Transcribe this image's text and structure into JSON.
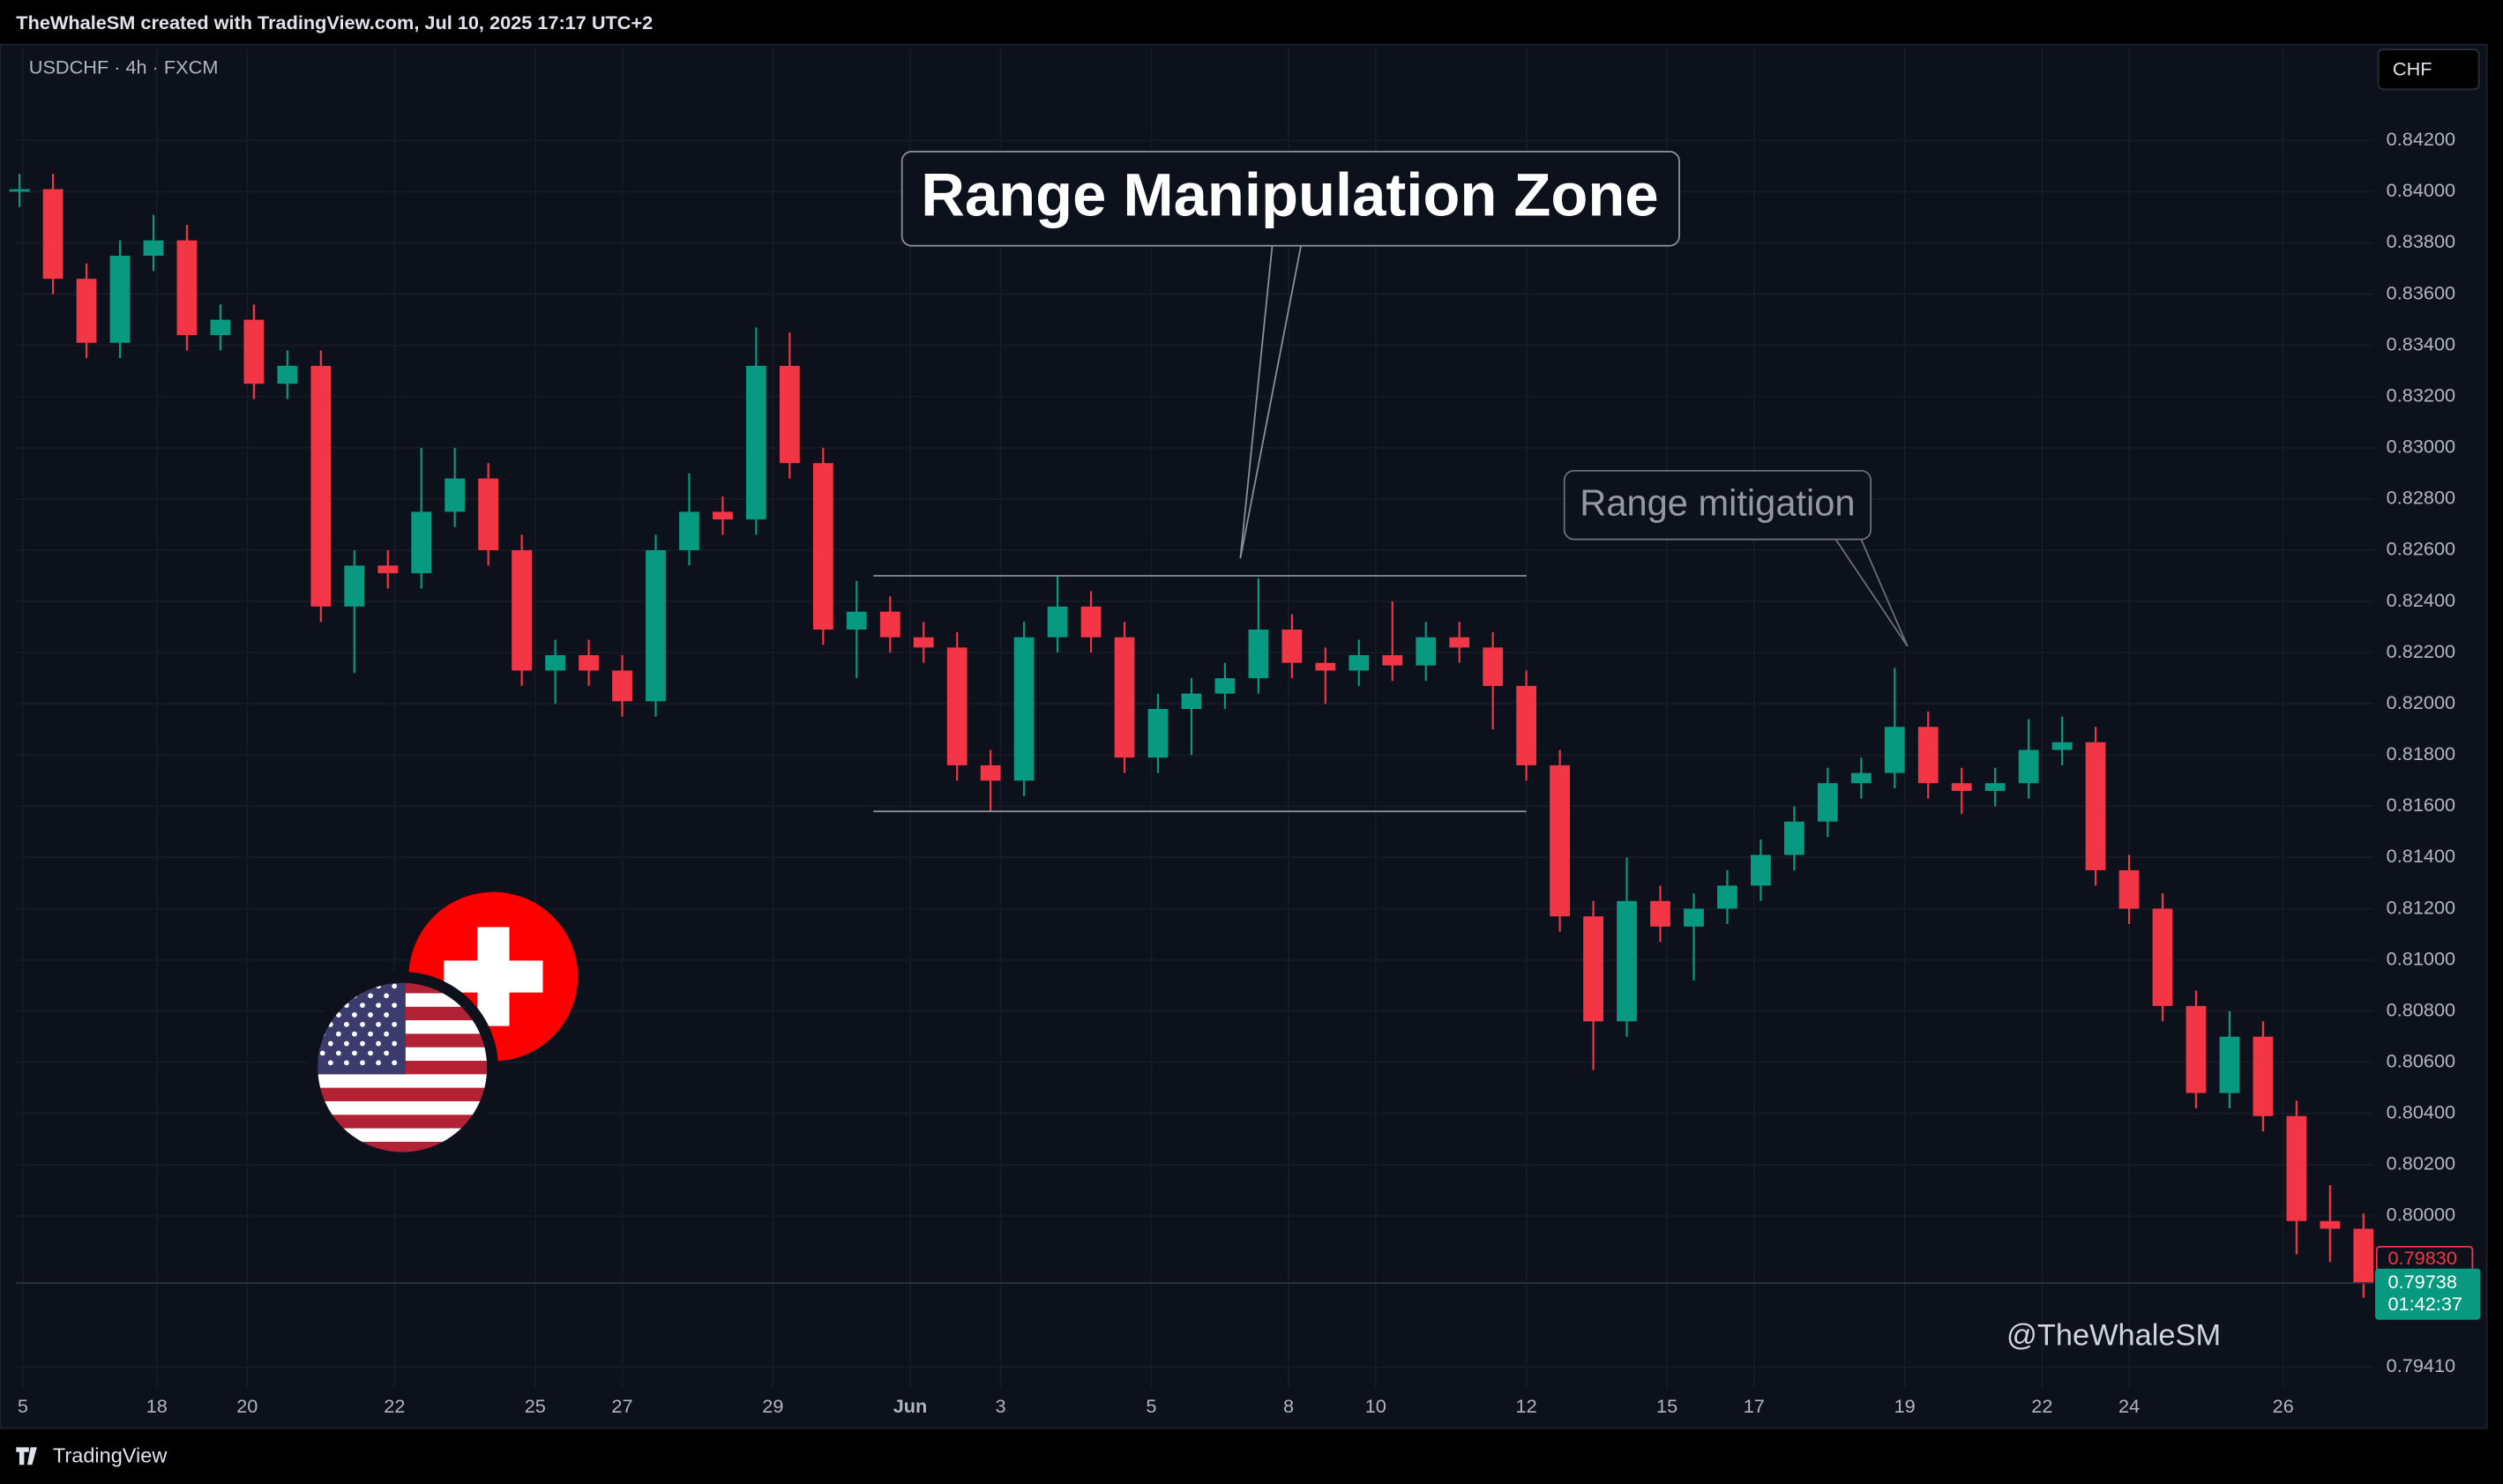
{
  "header_text": "TheWhaleSM created with TradingView.com, Jul 10, 2025 17:17 UTC+2",
  "symbol": "USDCHF · 4h · FXCM",
  "currency": "CHF",
  "watermark": "@TheWhaleSM",
  "footer": "TradingView",
  "chart_data": {
    "type": "candlestick",
    "up_color": "#089981",
    "down_color": "#f23645",
    "grid": true,
    "open": [
      0.84,
      0.8401,
      0.8366,
      0.8341,
      0.8375,
      0.8381,
      0.8344,
      0.835,
      0.8325,
      0.8332,
      0.8238,
      0.8254,
      0.8251,
      0.8275,
      0.8288,
      0.826,
      0.8213,
      0.8219,
      0.8213,
      0.8201,
      0.826,
      0.8275,
      0.8272,
      0.8332,
      0.8294,
      0.8229,
      0.8236,
      0.8226,
      0.8222,
      0.8176,
      0.817,
      0.8226,
      0.8238,
      0.8226,
      0.8179,
      0.8198,
      0.8204,
      0.821,
      0.8229,
      0.8216,
      0.8213,
      0.8219,
      0.8215,
      0.8226,
      0.8222,
      0.8207,
      0.8176,
      0.8117,
      0.8076,
      0.8123,
      0.8113,
      0.812,
      0.8129,
      0.8141,
      0.8154,
      0.8169,
      0.8173,
      0.8191,
      0.8169,
      0.8166,
      0.8169,
      0.8182,
      0.8185,
      0.8135,
      0.812,
      0.8082,
      0.8048,
      0.807,
      0.8039,
      0.7998,
      0.7995
    ],
    "high": [
      0.8407,
      0.8407,
      0.8372,
      0.8381,
      0.8391,
      0.8387,
      0.8356,
      0.8356,
      0.8338,
      0.8338,
      0.826,
      0.826,
      0.83,
      0.83,
      0.8294,
      0.8266,
      0.8225,
      0.8225,
      0.8219,
      0.8266,
      0.829,
      0.8281,
      0.8347,
      0.8345,
      0.83,
      0.8248,
      0.8242,
      0.8232,
      0.8228,
      0.8182,
      0.8232,
      0.825,
      0.8244,
      0.8232,
      0.8204,
      0.821,
      0.8216,
      0.8249,
      0.8235,
      0.8222,
      0.8225,
      0.824,
      0.8232,
      0.8232,
      0.8228,
      0.8213,
      0.8182,
      0.8123,
      0.814,
      0.8129,
      0.8126,
      0.8135,
      0.8147,
      0.816,
      0.8175,
      0.8179,
      0.8214,
      0.8197,
      0.8175,
      0.8175,
      0.8194,
      0.8195,
      0.8191,
      0.8141,
      0.8126,
      0.8088,
      0.808,
      0.8076,
      0.8045,
      0.8012,
      0.8001
    ],
    "low": [
      0.8394,
      0.836,
      0.8335,
      0.8335,
      0.8369,
      0.8338,
      0.8338,
      0.8319,
      0.8319,
      0.8232,
      0.8212,
      0.8245,
      0.8245,
      0.8269,
      0.8254,
      0.8207,
      0.82,
      0.8207,
      0.8195,
      0.8195,
      0.8254,
      0.8266,
      0.8266,
      0.8288,
      0.8223,
      0.821,
      0.822,
      0.8216,
      0.817,
      0.8158,
      0.8164,
      0.822,
      0.822,
      0.8173,
      0.8173,
      0.818,
      0.8198,
      0.8204,
      0.821,
      0.82,
      0.8207,
      0.8209,
      0.8209,
      0.8216,
      0.819,
      0.817,
      0.8111,
      0.8057,
      0.807,
      0.8107,
      0.8092,
      0.8114,
      0.8123,
      0.8135,
      0.8148,
      0.8163,
      0.8167,
      0.8163,
      0.8157,
      0.816,
      0.8163,
      0.8176,
      0.8129,
      0.8114,
      0.8076,
      0.8042,
      0.8042,
      0.8033,
      0.7985,
      0.7982,
      0.7968
    ],
    "close": [
      0.8401,
      0.8366,
      0.8341,
      0.8375,
      0.8381,
      0.8344,
      0.835,
      0.8325,
      0.8332,
      0.8238,
      0.8254,
      0.8251,
      0.8275,
      0.8288,
      0.826,
      0.8213,
      0.8219,
      0.8213,
      0.8201,
      0.826,
      0.8275,
      0.8272,
      0.8332,
      0.8294,
      0.8229,
      0.8236,
      0.8226,
      0.8222,
      0.8176,
      0.817,
      0.8226,
      0.8238,
      0.8226,
      0.8179,
      0.8198,
      0.8204,
      0.821,
      0.8229,
      0.8216,
      0.8213,
      0.8219,
      0.8215,
      0.8226,
      0.8222,
      0.8207,
      0.8176,
      0.8117,
      0.8076,
      0.8123,
      0.8113,
      0.812,
      0.8129,
      0.8141,
      0.8154,
      0.8169,
      0.8173,
      0.8191,
      0.8169,
      0.8166,
      0.8169,
      0.8182,
      0.8185,
      0.8135,
      0.812,
      0.8082,
      0.8048,
      0.807,
      0.8039,
      0.7998,
      0.7995,
      0.79738
    ],
    "ylim": [
      0.79327,
      0.84406
    ],
    "yticks": [
      {
        "value": 0.842,
        "label": "0.84200"
      },
      {
        "value": 0.84,
        "label": "0.84000"
      },
      {
        "value": 0.838,
        "label": "0.83800"
      },
      {
        "value": 0.836,
        "label": "0.83600"
      },
      {
        "value": 0.834,
        "label": "0.83400"
      },
      {
        "value": 0.832,
        "label": "0.83200"
      },
      {
        "value": 0.83,
        "label": "0.83000"
      },
      {
        "value": 0.828,
        "label": "0.82800"
      },
      {
        "value": 0.826,
        "label": "0.82600"
      },
      {
        "value": 0.824,
        "label": "0.82400"
      },
      {
        "value": 0.822,
        "label": "0.82200"
      },
      {
        "value": 0.82,
        "label": "0.82000"
      },
      {
        "value": 0.818,
        "label": "0.81800"
      },
      {
        "value": 0.816,
        "label": "0.81600"
      },
      {
        "value": 0.814,
        "label": "0.81400"
      },
      {
        "value": 0.812,
        "label": "0.81200"
      },
      {
        "value": 0.81,
        "label": "0.81000"
      },
      {
        "value": 0.808,
        "label": "0.80800"
      },
      {
        "value": 0.806,
        "label": "0.80600"
      },
      {
        "value": 0.804,
        "label": "0.80400"
      },
      {
        "value": 0.802,
        "label": "0.80200"
      },
      {
        "value": 0.8,
        "label": "0.80000"
      },
      {
        "value": 0.7941,
        "label": "0.79410"
      }
    ],
    "xlim": [
      -0.1,
      70.3
    ],
    "xticks": [
      {
        "value": 0.1,
        "label": "5"
      },
      {
        "value": 4.1,
        "label": "18"
      },
      {
        "value": 6.8,
        "label": "20"
      },
      {
        "value": 11.2,
        "label": "22"
      },
      {
        "value": 15.4,
        "label": "25"
      },
      {
        "value": 18,
        "label": "27"
      },
      {
        "value": 22.5,
        "label": "29"
      },
      {
        "value": 26.6,
        "label": "Jun"
      },
      {
        "value": 29.3,
        "label": "3"
      },
      {
        "value": 33.8,
        "label": "5"
      },
      {
        "value": 37.9,
        "label": "8"
      },
      {
        "value": 40.5,
        "label": "10"
      },
      {
        "value": 45,
        "label": "12"
      },
      {
        "value": 49.2,
        "label": "15"
      },
      {
        "value": 51.8,
        "label": "17"
      },
      {
        "value": 56.3,
        "label": "19"
      },
      {
        "value": 60.4,
        "label": "22"
      },
      {
        "value": 63,
        "label": "24"
      },
      {
        "value": 67.6,
        "label": "26"
      }
    ],
    "range_box": {
      "top": 0.825,
      "bottom": 0.8158,
      "start": 25.5,
      "end": 45
    },
    "annotations": [
      "Range Manipulation Zone",
      "Range mitigation"
    ],
    "prev_price": {
      "value": 0.7983,
      "label": "0.79830"
    },
    "last_price": {
      "value": 0.79738,
      "label": "0.79738"
    },
    "countdown": "01:42:37"
  }
}
